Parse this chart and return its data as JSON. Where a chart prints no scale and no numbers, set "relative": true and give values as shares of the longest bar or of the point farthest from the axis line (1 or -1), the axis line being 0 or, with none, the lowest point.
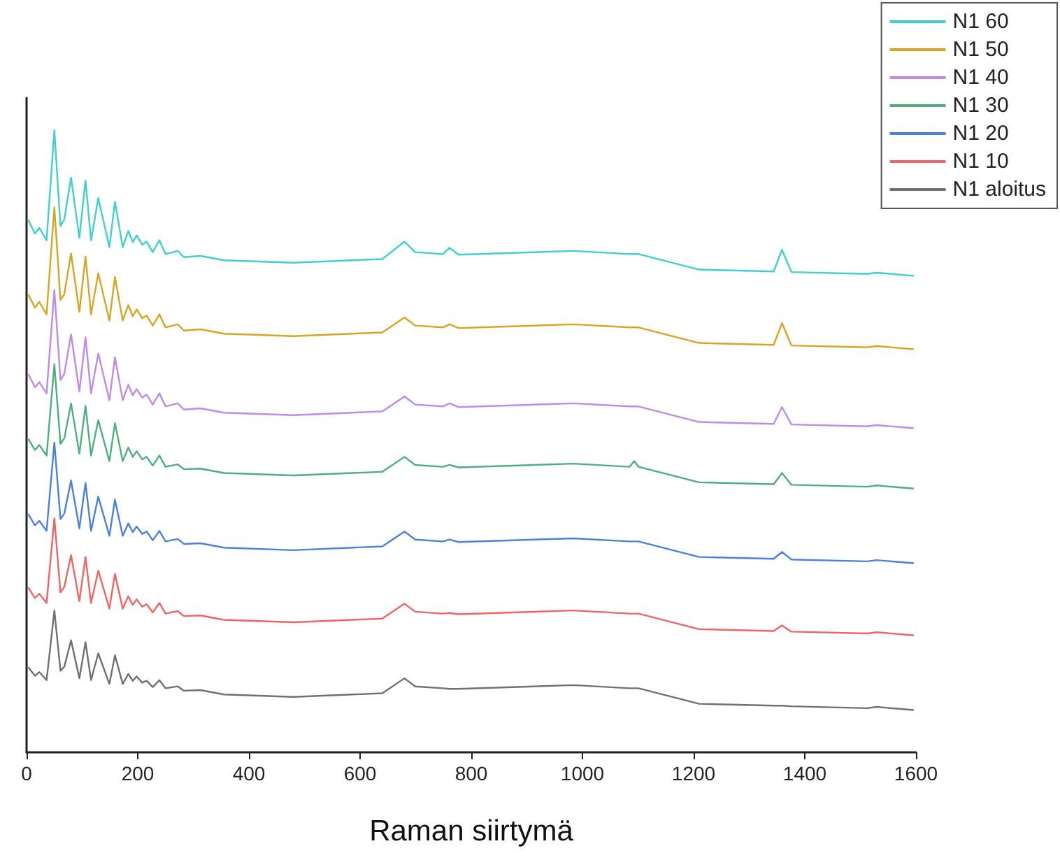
{
  "chart_data": {
    "type": "line",
    "xlabel": "Raman siirtymä",
    "relative": true,
    "xlim": [
      0,
      1600
    ],
    "xticks": [
      0,
      200,
      400,
      600,
      800,
      1000,
      1200,
      1400,
      1600
    ],
    "legend": "top right",
    "line_style": "solid",
    "marker": "none",
    "x": [
      3,
      15,
      23,
      36,
      50,
      61,
      68,
      80,
      95,
      106,
      116,
      129,
      149,
      159,
      173,
      183,
      191,
      198,
      208,
      216,
      227,
      239,
      250,
      272,
      283,
      313,
      355,
      480,
      640,
      680,
      699,
      749,
      761,
      777,
      984,
      1085,
      1093,
      1101,
      1210,
      1344,
      1359,
      1376,
      1512,
      1529,
      1596
    ],
    "series": [
      {
        "name": "N1 60",
        "color": "#40cfcf",
        "values": [
          0.856,
          0.834,
          0.843,
          0.823,
          1,
          0.846,
          0.857,
          0.924,
          0.827,
          0.919,
          0.823,
          0.891,
          0.812,
          0.885,
          0.812,
          0.838,
          0.82,
          0.831,
          0.816,
          0.821,
          0.804,
          0.823,
          0.801,
          0.806,
          0.796,
          0.798,
          0.791,
          0.787,
          0.793,
          0.821,
          0.804,
          0.801,
          0.811,
          0.8,
          0.806,
          0.801,
          0.801,
          0.801,
          0.776,
          0.773,
          0.808,
          0.772,
          0.769,
          0.771,
          0.766
        ]
      },
      {
        "name": "N1 50",
        "color": "#d9a520",
        "values": [
          0.736,
          0.715,
          0.724,
          0.704,
          0.876,
          0.727,
          0.737,
          0.802,
          0.708,
          0.797,
          0.704,
          0.77,
          0.694,
          0.764,
          0.694,
          0.719,
          0.701,
          0.712,
          0.698,
          0.702,
          0.686,
          0.704,
          0.683,
          0.688,
          0.678,
          0.68,
          0.673,
          0.669,
          0.675,
          0.699,
          0.686,
          0.683,
          0.688,
          0.682,
          0.688,
          0.683,
          0.683,
          0.683,
          0.658,
          0.655,
          0.69,
          0.654,
          0.651,
          0.653,
          0.648
        ]
      },
      {
        "name": "N1 40",
        "color": "#c08ae8",
        "values": [
          0.608,
          0.587,
          0.595,
          0.577,
          0.743,
          0.598,
          0.609,
          0.672,
          0.58,
          0.667,
          0.577,
          0.641,
          0.566,
          0.635,
          0.566,
          0.591,
          0.574,
          0.584,
          0.57,
          0.575,
          0.559,
          0.577,
          0.556,
          0.561,
          0.551,
          0.553,
          0.546,
          0.542,
          0.548,
          0.572,
          0.559,
          0.556,
          0.561,
          0.555,
          0.561,
          0.556,
          0.556,
          0.556,
          0.531,
          0.528,
          0.555,
          0.527,
          0.524,
          0.526,
          0.521
        ]
      },
      {
        "name": "N1 30",
        "color": "#4caf7d",
        "values": [
          0.504,
          0.486,
          0.494,
          0.477,
          0.624,
          0.496,
          0.505,
          0.561,
          0.48,
          0.557,
          0.477,
          0.534,
          0.468,
          0.529,
          0.468,
          0.49,
          0.475,
          0.484,
          0.471,
          0.475,
          0.461,
          0.477,
          0.459,
          0.463,
          0.455,
          0.456,
          0.449,
          0.445,
          0.451,
          0.475,
          0.462,
          0.459,
          0.462,
          0.458,
          0.464,
          0.459,
          0.468,
          0.459,
          0.434,
          0.431,
          0.449,
          0.43,
          0.427,
          0.429,
          0.424
        ]
      },
      {
        "name": "N1 20",
        "color": "#4a80e0",
        "values": [
          0.383,
          0.365,
          0.372,
          0.356,
          0.498,
          0.375,
          0.384,
          0.437,
          0.36,
          0.433,
          0.356,
          0.411,
          0.348,
          0.406,
          0.348,
          0.368,
          0.354,
          0.363,
          0.351,
          0.355,
          0.341,
          0.356,
          0.339,
          0.343,
          0.335,
          0.336,
          0.329,
          0.325,
          0.331,
          0.355,
          0.342,
          0.339,
          0.342,
          0.338,
          0.344,
          0.339,
          0.339,
          0.339,
          0.314,
          0.311,
          0.322,
          0.31,
          0.307,
          0.309,
          0.304
        ]
      },
      {
        "name": "N1 10",
        "color": "#f26464",
        "values": [
          0.265,
          0.248,
          0.255,
          0.24,
          0.376,
          0.257,
          0.266,
          0.317,
          0.243,
          0.314,
          0.24,
          0.292,
          0.231,
          0.287,
          0.231,
          0.251,
          0.237,
          0.246,
          0.234,
          0.238,
          0.225,
          0.24,
          0.223,
          0.227,
          0.219,
          0.22,
          0.213,
          0.209,
          0.215,
          0.239,
          0.226,
          0.223,
          0.224,
          0.222,
          0.228,
          0.223,
          0.223,
          0.223,
          0.198,
          0.195,
          0.204,
          0.194,
          0.191,
          0.193,
          0.188
        ]
      },
      {
        "name": "N1 aloitus",
        "color": "#707070",
        "values": [
          0.137,
          0.123,
          0.129,
          0.116,
          0.228,
          0.131,
          0.138,
          0.18,
          0.119,
          0.177,
          0.116,
          0.159,
          0.11,
          0.156,
          0.11,
          0.126,
          0.115,
          0.122,
          0.112,
          0.115,
          0.105,
          0.116,
          0.103,
          0.106,
          0.099,
          0.1,
          0.093,
          0.089,
          0.095,
          0.119,
          0.106,
          0.103,
          0.102,
          0.102,
          0.108,
          0.103,
          0.103,
          0.103,
          0.078,
          0.075,
          0.075,
          0.074,
          0.071,
          0.073,
          0.068
        ]
      }
    ]
  }
}
